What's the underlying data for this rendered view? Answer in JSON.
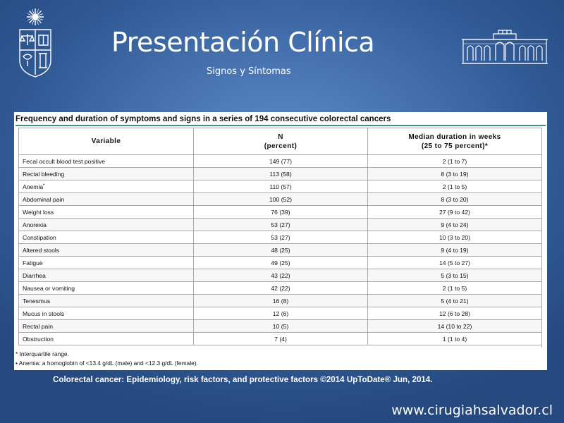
{
  "slide": {
    "title": "Presentación Clínica",
    "subtitle": "Signos y Síntomas",
    "source": "Colorectal cancer: Epidemiology, risk factors, and protective factors ©2014 UpToDate® Jun, 2014.",
    "url": "www.cirugiahsalvador.cl"
  },
  "table": {
    "caption": "Frequency and duration of symptoms and signs in a series of 194 consecutive colorectal cancers",
    "headers": {
      "variable": "Variable",
      "n_line1": "N",
      "n_line2": "(percent)",
      "dur_line1": "Median duration in weeks",
      "dur_line2": "(25 to 75 percent)*"
    },
    "rows": [
      {
        "variable": "Fecal occult blood test positive",
        "n": "149 (77)",
        "duration": "2 (1 to 7)"
      },
      {
        "variable": "Rectal bleeding",
        "n": "113 (58)",
        "duration": "8 (3 to 19)"
      },
      {
        "variable": "Anemia",
        "mark": "•",
        "n": "110 (57)",
        "duration": "2 (1 to 5)"
      },
      {
        "variable": "Abdominal pain",
        "n": "100 (52)",
        "duration": "8 (3 to 20)"
      },
      {
        "variable": "Weight loss",
        "n": "76 (39)",
        "duration": "27 (9 to 42)"
      },
      {
        "variable": "Anorexia",
        "n": "53 (27)",
        "duration": "9 (4 to 24)"
      },
      {
        "variable": "Constipation",
        "n": "53 (27)",
        "duration": "10 (3 to 20)"
      },
      {
        "variable": "Altered stools",
        "n": "48 (25)",
        "duration": "9 (4 to 19)"
      },
      {
        "variable": "Fatigue",
        "n": "49 (25)",
        "duration": "14 (5 to 27)"
      },
      {
        "variable": "Diarrhea",
        "n": "43 (22)",
        "duration": "5 (3 to 15)"
      },
      {
        "variable": "Nausea or vomiting",
        "n": "42 (22)",
        "duration": "2 (1 to 5)"
      },
      {
        "variable": "Tenesmus",
        "n": "16 (8)",
        "duration": "5 (4 to 21)"
      },
      {
        "variable": "Mucus in stools",
        "n": "12 (6)",
        "duration": "12 (6 to 28)"
      },
      {
        "variable": "Rectal pain",
        "n": "10 (5)",
        "duration": "14 (10 to 22)"
      },
      {
        "variable": "Obstruction",
        "n": "7 (4)",
        "duration": "1 (1 to 4)"
      }
    ],
    "footnotes": [
      "* Interquartile range.",
      "• Anemia: a homoglobin of <13.4 g/dL (male) and <12.3 g/dL (female)."
    ]
  },
  "colors": {
    "background": "#3a64a3",
    "rule": "#3e8f82"
  },
  "icons": {
    "left_logo": "university-crest-icon",
    "right_logo": "hospital-building-icon"
  }
}
